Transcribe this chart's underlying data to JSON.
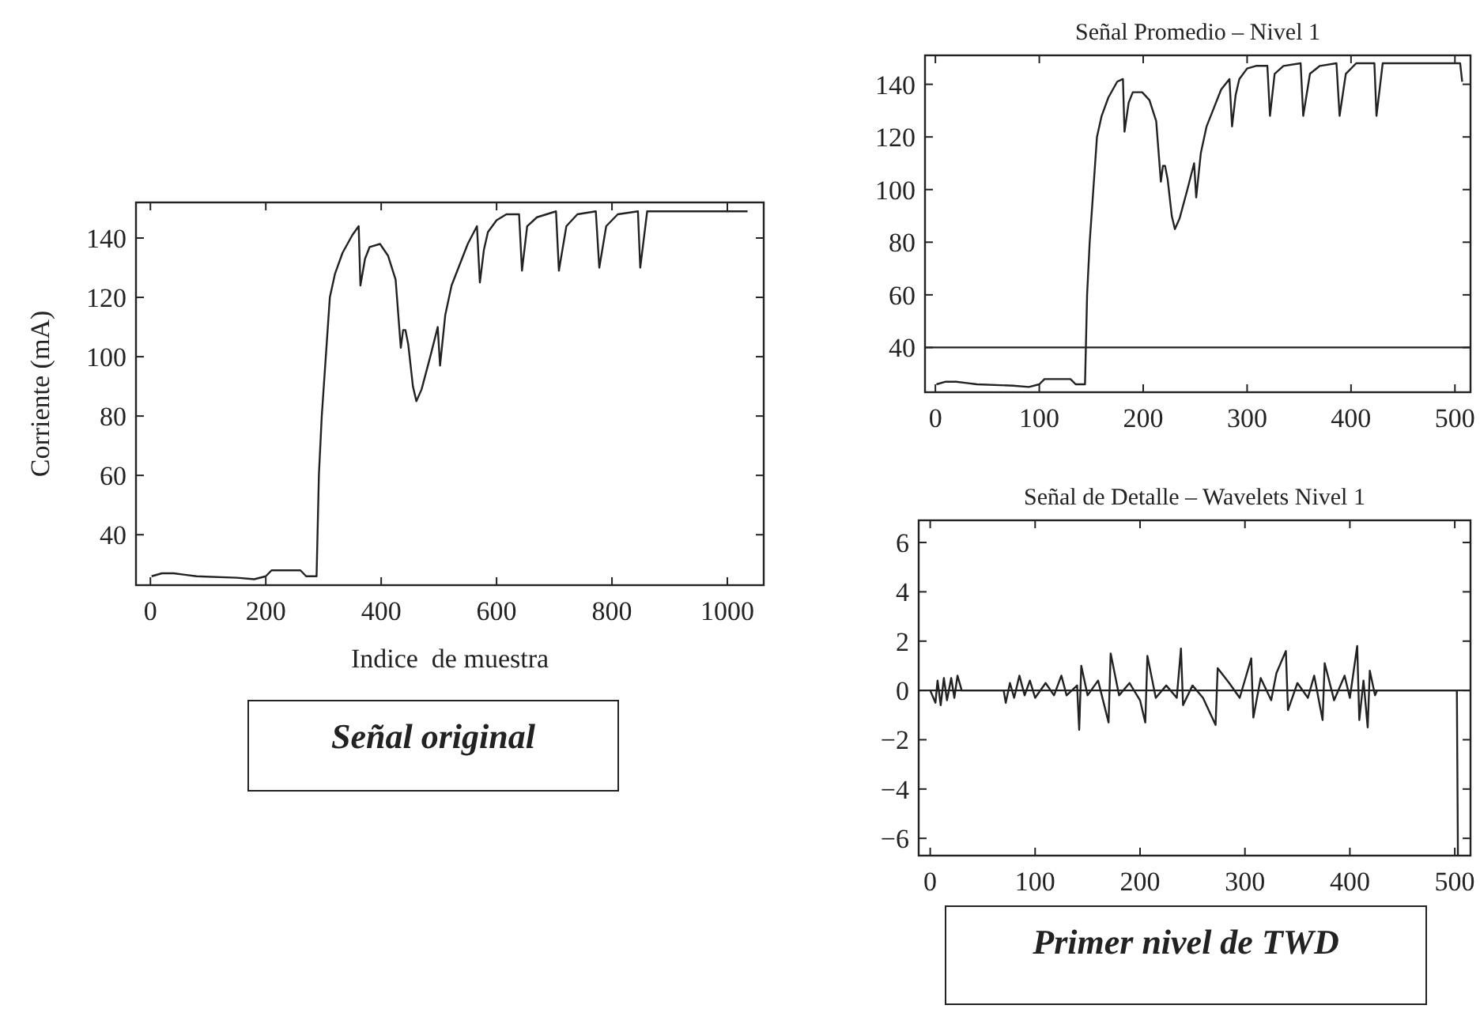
{
  "chart_data": [
    {
      "type": "line",
      "xlabel": "Indice  de muestra",
      "ylabel": "Corriente (mA)",
      "annotations": [
        "Señal original"
      ],
      "xlim": [
        -25,
        1063
      ],
      "ylim": [
        23,
        152
      ],
      "xticks": [
        0,
        200,
        400,
        600,
        800,
        1000
      ],
      "yticks": [
        40,
        60,
        80,
        100,
        120,
        140
      ],
      "grid": false,
      "series": [
        {
          "color": "#222222",
          "x": [
            2,
            20,
            40,
            60,
            80,
            150,
            180,
            200,
            210,
            260,
            270,
            288,
            292,
            297,
            304,
            311,
            320,
            333,
            350,
            361,
            364,
            372,
            380,
            398,
            412,
            425,
            434,
            438,
            442,
            447,
            455,
            461,
            470,
            485,
            498,
            502,
            511,
            522,
            534,
            550,
            566,
            571,
            578,
            585,
            600,
            617,
            639,
            644,
            653,
            670,
            703,
            708,
            721,
            740,
            772,
            778,
            790,
            810,
            845,
            849,
            861,
            1035
          ],
          "values": [
            26,
            27,
            27,
            26.5,
            26,
            25.5,
            25,
            26,
            28,
            28,
            26,
            26,
            60,
            80,
            100,
            120,
            128,
            135,
            141,
            144,
            124,
            133,
            137,
            138,
            134,
            126,
            103,
            109,
            109,
            104,
            90,
            85,
            89,
            100,
            110,
            97,
            114,
            124,
            130,
            138,
            144,
            125,
            136,
            142,
            146,
            148,
            148,
            129,
            144,
            147,
            149,
            129,
            144,
            148,
            149,
            130,
            144,
            148,
            149,
            130,
            149,
            149
          ]
        }
      ]
    },
    {
      "type": "line",
      "title": "Señal Promedio – Nivel 1",
      "xlim": [
        -10,
        515
      ],
      "ylim": [
        23,
        151
      ],
      "xticks": [
        0,
        100,
        200,
        300,
        400,
        500
      ],
      "yticks": [
        40,
        60,
        80,
        100,
        120,
        140
      ],
      "grid": false,
      "ref_lines": [
        {
          "axis": "y",
          "value": 40,
          "color": "#222222"
        }
      ],
      "series": [
        {
          "color": "#222222",
          "x": [
            1,
            10,
            20,
            30,
            40,
            75,
            90,
            100,
            105,
            130,
            135,
            144,
            146,
            148.5,
            152,
            155.5,
            160,
            166.5,
            175,
            180.5,
            182,
            186,
            190,
            199,
            206,
            212.5,
            217,
            219,
            221,
            223.5,
            227.5,
            230.5,
            235,
            242.5,
            249,
            251,
            255.5,
            261,
            267,
            275,
            283,
            285.5,
            289,
            292.5,
            300,
            308.5,
            319.5,
            322,
            326.5,
            335,
            351.5,
            354,
            360.5,
            370,
            386,
            389,
            395,
            405,
            422.5,
            424.5,
            430.5,
            505,
            507
          ],
          "values": [
            26,
            27,
            27,
            26.5,
            26,
            25.5,
            25,
            26,
            28,
            28,
            26,
            26,
            60,
            80,
            100,
            120,
            128,
            135,
            141,
            142,
            122,
            133,
            137,
            137,
            134,
            126,
            103,
            109,
            109,
            104,
            90,
            85,
            89,
            100,
            110,
            97,
            114,
            124,
            130,
            138,
            142,
            124,
            136,
            142,
            146,
            147,
            147,
            128,
            144,
            147,
            148,
            128,
            144,
            147,
            148,
            128,
            144,
            148,
            148,
            128,
            148,
            148,
            141
          ]
        }
      ]
    },
    {
      "type": "line",
      "title": "Señal de Detalle – Wavelets Nivel 1",
      "annotations": [
        "Primer nivel de TWD"
      ],
      "xlim": [
        -11,
        515
      ],
      "ylim": [
        -6.7,
        6.9
      ],
      "xticks": [
        0,
        100,
        200,
        300,
        400,
        500
      ],
      "yticks": [
        6,
        4,
        2,
        0,
        -2,
        -4,
        -6
      ],
      "grid": false,
      "ref_lines": [
        {
          "axis": "y",
          "value": 0,
          "color": "#222222"
        }
      ],
      "series": [
        {
          "color": "#222222",
          "x": [
            0,
            5,
            7,
            10,
            13,
            16,
            20,
            23,
            26,
            30,
            70,
            72,
            76,
            80,
            85,
            90,
            95,
            100,
            110,
            118,
            125,
            130,
            140,
            142,
            144,
            150,
            160,
            170,
            172,
            180,
            190,
            200,
            205,
            207,
            215,
            225,
            235,
            239,
            241,
            250,
            260,
            272,
            274,
            285,
            295,
            306,
            308,
            315,
            325,
            330,
            339,
            341,
            350,
            360,
            366,
            374,
            376,
            385,
            395,
            400,
            407,
            409,
            413,
            417,
            419,
            424,
            426,
            502,
            503
          ],
          "values": [
            0,
            -0.5,
            0.4,
            -0.6,
            0.5,
            -0.4,
            0.5,
            -0.3,
            0.6,
            0,
            0,
            -0.5,
            0.3,
            -0.3,
            0.6,
            -0.2,
            0.4,
            -0.3,
            0.3,
            -0.2,
            0.6,
            -0.2,
            0.2,
            -1.6,
            1.0,
            -0.2,
            0.4,
            -1.3,
            1.5,
            -0.2,
            0.3,
            -0.4,
            -1.3,
            1.4,
            -0.3,
            0.2,
            -0.3,
            1.7,
            -0.6,
            0.2,
            -0.3,
            -1.4,
            0.9,
            0.3,
            -0.3,
            1.3,
            -1.1,
            0.5,
            -0.4,
            0.7,
            1.6,
            -0.8,
            0.3,
            -0.3,
            0.6,
            -1.2,
            1.1,
            -0.4,
            0.6,
            -0.3,
            1.8,
            -1.2,
            0.4,
            -1.5,
            0.8,
            -0.2,
            0,
            0,
            -6.7
          ]
        }
      ]
    }
  ]
}
